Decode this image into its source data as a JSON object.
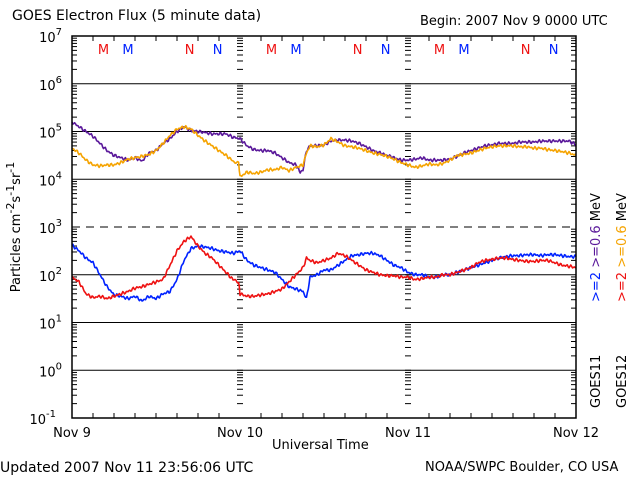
{
  "header": {
    "title": "GOES Electron Flux (5 minute data)",
    "begin": "Begin: 2007 Nov 9 0000 UTC"
  },
  "footer": {
    "updated": "Updated 2007 Nov 11 23:56:06 UTC",
    "credit": "NOAA/SWPC Boulder, CO USA"
  },
  "chart_data": {
    "type": "line",
    "title": "GOES Electron Flux (5 minute data)",
    "xlabel": "Universal Time",
    "ylabel": "Particles cm-2 s-1 sr-1",
    "yscale": "log",
    "ylim_exponent": [
      -1,
      7
    ],
    "y_ticks": [
      {
        "base": "10",
        "exp": "7"
      },
      {
        "base": "10",
        "exp": "6"
      },
      {
        "base": "10",
        "exp": "5"
      },
      {
        "base": "10",
        "exp": "4"
      },
      {
        "base": "10",
        "exp": "3"
      },
      {
        "base": "10",
        "exp": "2"
      },
      {
        "base": "10",
        "exp": "1"
      },
      {
        "base": "10",
        "exp": "0"
      },
      {
        "base": "10",
        "exp": "-1"
      }
    ],
    "x_unit": "hours since 2007 Nov 9 0000 UTC",
    "xlim": [
      0,
      72
    ],
    "x_ticks": [
      {
        "label": "Nov 9",
        "hour": 0
      },
      {
        "label": "Nov 10",
        "hour": 24
      },
      {
        "label": "Nov 11",
        "hour": 48
      },
      {
        "label": "Nov 12",
        "hour": 72
      }
    ],
    "threshold_line_exp": 3,
    "grid": "horizontal lines at each decade",
    "markers": [
      {
        "label": "M",
        "hour": 4.5,
        "satellite": "GOES12"
      },
      {
        "label": "M",
        "hour": 8.0,
        "satellite": "GOES11"
      },
      {
        "label": "N",
        "hour": 16.8,
        "satellite": "GOES12"
      },
      {
        "label": "N",
        "hour": 20.8,
        "satellite": "GOES11"
      },
      {
        "label": "M",
        "hour": 28.5,
        "satellite": "GOES12"
      },
      {
        "label": "M",
        "hour": 32.0,
        "satellite": "GOES11"
      },
      {
        "label": "N",
        "hour": 40.8,
        "satellite": "GOES12"
      },
      {
        "label": "N",
        "hour": 44.8,
        "satellite": "GOES11"
      },
      {
        "label": "M",
        "hour": 52.5,
        "satellite": "GOES12"
      },
      {
        "label": "M",
        "hour": 56.0,
        "satellite": "GOES11"
      },
      {
        "label": "N",
        "hour": 64.8,
        "satellite": "GOES12"
      },
      {
        "label": "N",
        "hour": 68.8,
        "satellite": "GOES11"
      }
    ],
    "legend": {
      "placement": "right",
      "satellites": [
        "GOES11",
        "GOES12"
      ],
      "unit": "MeV",
      "entries": [
        {
          "text": ">=2",
          "color": "#0022ff",
          "col": "GOES11"
        },
        {
          "text": ">=0.6",
          "color": "#5a189a",
          "col": "GOES11"
        },
        {
          "text": ">=2",
          "color": "#ee1111",
          "col": "GOES12"
        },
        {
          "text": ">=0.6",
          "color": "#f5a300",
          "col": "GOES12"
        }
      ]
    },
    "series": [
      {
        "name": "GOES11 >=0.6 MeV",
        "color": "#5a189a",
        "hours": [
          0,
          1,
          2,
          3,
          4,
          5,
          6,
          7,
          8,
          9,
          10,
          11,
          12,
          13,
          14,
          15,
          16,
          17,
          18,
          19,
          20,
          21,
          22,
          23,
          24,
          25,
          26,
          27,
          28,
          29,
          30,
          31,
          32,
          32.6,
          33,
          33.5,
          34,
          35,
          36,
          37,
          38,
          39,
          40,
          41,
          42,
          43,
          44,
          45,
          46,
          47,
          48,
          49,
          50,
          51,
          52,
          53,
          54,
          55,
          56,
          57,
          58,
          59,
          60,
          61,
          62,
          63,
          64,
          65,
          66,
          67,
          68,
          69,
          70,
          71,
          72
        ],
        "log10_values": [
          5.2,
          5.1,
          5.0,
          4.9,
          4.75,
          4.6,
          4.5,
          4.45,
          4.4,
          4.45,
          4.38,
          4.55,
          4.6,
          4.75,
          4.85,
          5.0,
          5.1,
          5.02,
          5.0,
          4.98,
          4.95,
          4.95,
          4.95,
          4.88,
          4.85,
          4.7,
          4.62,
          4.6,
          4.6,
          4.55,
          4.45,
          4.35,
          4.3,
          4.15,
          4.2,
          4.6,
          4.7,
          4.7,
          4.72,
          4.8,
          4.82,
          4.82,
          4.8,
          4.75,
          4.68,
          4.6,
          4.55,
          4.5,
          4.45,
          4.4,
          4.4,
          4.42,
          4.45,
          4.4,
          4.4,
          4.4,
          4.42,
          4.48,
          4.55,
          4.6,
          4.65,
          4.7,
          4.72,
          4.75,
          4.75,
          4.75,
          4.78,
          4.78,
          4.78,
          4.8,
          4.8,
          4.8,
          4.8,
          4.8,
          4.72
        ]
      },
      {
        "name": "GOES12 >=0.6 MeV",
        "color": "#f5a300",
        "hours": [
          0,
          1,
          2,
          3,
          4,
          5,
          6,
          7,
          8,
          9,
          10,
          11,
          12,
          13,
          14,
          15,
          16,
          17,
          18,
          19,
          20,
          21,
          22,
          23,
          23.8,
          24,
          25,
          26,
          27,
          28,
          29,
          30,
          31,
          32,
          33,
          33.5,
          34,
          35,
          36,
          37,
          38,
          39,
          40,
          41,
          42,
          43,
          44,
          45,
          46,
          47,
          48,
          49,
          50,
          51,
          52,
          53,
          54,
          55,
          56,
          57,
          58,
          59,
          60,
          61,
          62,
          63,
          64,
          65,
          66,
          67,
          68,
          69,
          70,
          71,
          72
        ],
        "log10_values": [
          4.65,
          4.55,
          4.4,
          4.3,
          4.28,
          4.3,
          4.3,
          4.35,
          4.42,
          4.45,
          4.48,
          4.52,
          4.6,
          4.75,
          4.92,
          5.05,
          5.1,
          5.05,
          4.92,
          4.8,
          4.7,
          4.6,
          4.5,
          4.38,
          4.35,
          4.05,
          4.15,
          4.12,
          4.15,
          4.2,
          4.2,
          4.25,
          4.18,
          4.25,
          4.3,
          4.55,
          4.7,
          4.68,
          4.72,
          4.85,
          4.78,
          4.7,
          4.68,
          4.65,
          4.6,
          4.55,
          4.52,
          4.48,
          4.42,
          4.35,
          4.3,
          4.25,
          4.28,
          4.32,
          4.3,
          4.33,
          4.4,
          4.5,
          4.52,
          4.55,
          4.6,
          4.65,
          4.68,
          4.7,
          4.7,
          4.7,
          4.68,
          4.68,
          4.65,
          4.65,
          4.62,
          4.6,
          4.58,
          4.55,
          4.5
        ]
      },
      {
        "name": "GOES11 >=2 MeV",
        "color": "#0022ff",
        "hours": [
          0,
          1,
          2,
          3,
          4,
          5,
          6,
          7,
          8,
          9,
          10,
          11,
          12,
          13,
          14,
          15,
          16,
          17,
          18,
          19,
          20,
          21,
          22,
          23,
          24,
          25,
          26,
          27,
          28,
          29,
          30,
          31,
          32,
          33,
          33.5,
          34,
          35,
          36,
          37,
          38,
          39,
          40,
          41,
          42,
          43,
          44,
          45,
          46,
          47,
          48,
          49,
          50,
          51,
          52,
          53,
          54,
          55,
          56,
          57,
          58,
          59,
          60,
          61,
          62,
          63,
          64,
          65,
          66,
          67,
          68,
          69,
          70,
          71,
          72
        ],
        "log10_values": [
          2.62,
          2.5,
          2.35,
          2.25,
          2.0,
          1.75,
          1.58,
          1.55,
          1.5,
          1.55,
          1.45,
          1.55,
          1.5,
          1.6,
          1.65,
          1.9,
          2.3,
          2.55,
          2.6,
          2.58,
          2.55,
          2.5,
          2.48,
          2.45,
          2.5,
          2.3,
          2.2,
          2.15,
          2.1,
          2.05,
          1.9,
          1.75,
          1.7,
          1.65,
          1.5,
          1.95,
          2.0,
          2.1,
          2.1,
          2.2,
          2.3,
          2.4,
          2.42,
          2.45,
          2.45,
          2.4,
          2.3,
          2.2,
          2.15,
          2.05,
          2.0,
          2.0,
          1.95,
          1.95,
          2.0,
          2.0,
          2.05,
          2.1,
          2.15,
          2.2,
          2.25,
          2.3,
          2.35,
          2.38,
          2.4,
          2.4,
          2.42,
          2.42,
          2.4,
          2.42,
          2.42,
          2.4,
          2.38,
          2.38,
          2.35
        ]
      },
      {
        "name": "GOES12 >=2 MeV",
        "color": "#ee1111",
        "hours": [
          0,
          1,
          2,
          3,
          4,
          5,
          6,
          7,
          8,
          9,
          10,
          11,
          12,
          13,
          14,
          15,
          16,
          17,
          18,
          19,
          20,
          21,
          22,
          23,
          23.8,
          24,
          25,
          26,
          27,
          28,
          29,
          30,
          31,
          32,
          33,
          33.5,
          34,
          35,
          36,
          37,
          38,
          39,
          40,
          41,
          42,
          43,
          44,
          45,
          46,
          47,
          48,
          49,
          50,
          51,
          52,
          53,
          54,
          55,
          56,
          57,
          58,
          59,
          60,
          61,
          62,
          63,
          64,
          65,
          66,
          67,
          68,
          69,
          70,
          71,
          72
        ],
        "log10_values": [
          1.95,
          1.85,
          1.6,
          1.52,
          1.55,
          1.5,
          1.55,
          1.6,
          1.65,
          1.72,
          1.75,
          1.8,
          1.85,
          1.9,
          2.2,
          2.5,
          2.7,
          2.8,
          2.6,
          2.45,
          2.35,
          2.2,
          2.05,
          1.9,
          1.85,
          1.6,
          1.55,
          1.55,
          1.58,
          1.6,
          1.65,
          1.7,
          1.85,
          2.0,
          2.15,
          2.35,
          2.3,
          2.25,
          2.3,
          2.35,
          2.45,
          2.4,
          2.3,
          2.2,
          2.1,
          2.05,
          2.0,
          1.98,
          1.98,
          1.95,
          1.95,
          1.9,
          1.92,
          1.95,
          1.95,
          2.0,
          2.0,
          2.05,
          2.1,
          2.15,
          2.25,
          2.3,
          2.32,
          2.35,
          2.35,
          2.32,
          2.3,
          2.28,
          2.28,
          2.3,
          2.3,
          2.25,
          2.2,
          2.18,
          2.15
        ]
      }
    ]
  }
}
